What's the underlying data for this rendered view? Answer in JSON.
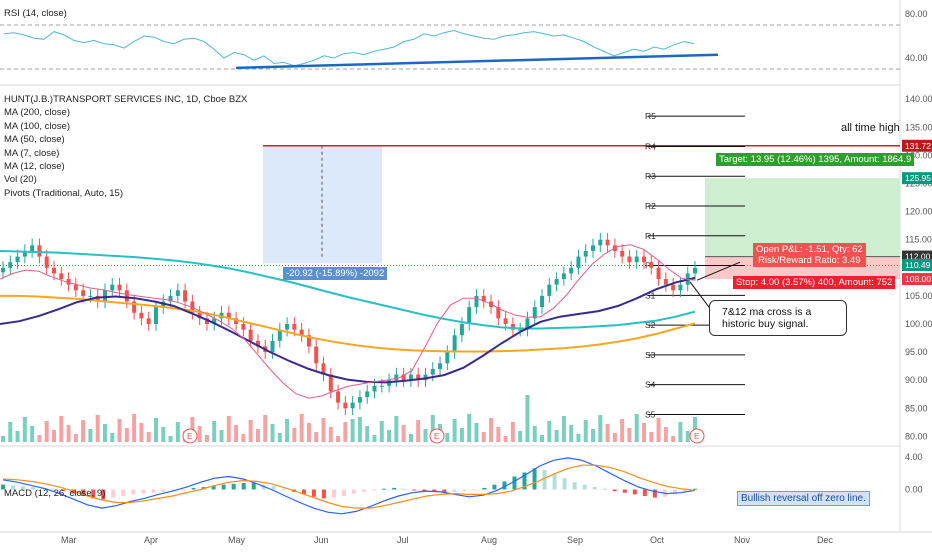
{
  "chart_data": [
    {
      "type": "line",
      "panel": "rsi",
      "title": "RSI (14, close)",
      "ylim": [
        20,
        90
      ],
      "levels": [
        70,
        30
      ],
      "axis_ticks": [
        "80.00",
        "40.00"
      ],
      "values": [
        62,
        63,
        61,
        58,
        57,
        64,
        61,
        56,
        54,
        56,
        53,
        52,
        49,
        55,
        60,
        59,
        55,
        53,
        57,
        58,
        55,
        48,
        40,
        45,
        43,
        38,
        42,
        35,
        36,
        33,
        35,
        38,
        42,
        40,
        44,
        45,
        43,
        46,
        48,
        50,
        55,
        57,
        62,
        60,
        63,
        65,
        62,
        60,
        58,
        57,
        60,
        61,
        63,
        64,
        62,
        60,
        61,
        58,
        55,
        50,
        46,
        42,
        45,
        48,
        46,
        50,
        48,
        52,
        55,
        53
      ],
      "trendline": {
        "from_index": 24,
        "to_index": 69,
        "from_value": 31,
        "to_value": 43
      }
    },
    {
      "type": "candlestick",
      "panel": "price",
      "title": "HUNT(J.B.)TRANSPORT SERVICES INC, 1D, Cboe BZX",
      "legend": [
        "MA (200, close)",
        "MA (100, close)",
        "MA (50, close)",
        "MA (7, close)",
        "MA (12, close)",
        "Vol (20)",
        "Pivots (Traditional, Auto, 15)"
      ],
      "axis_ticks": [
        "140.00",
        "135.00",
        "130.00",
        "125.00",
        "120.00",
        "115.00",
        "110.00",
        "105.00",
        "100.00",
        "95.00",
        "90.00",
        "85.00",
        "80.00"
      ],
      "ylim": [
        79,
        142
      ],
      "x_labels": [
        "Mar",
        "Apr",
        "May",
        "Jun",
        "Jul",
        "Aug",
        "Sep",
        "Oct",
        "Nov",
        "Dec"
      ],
      "closes": [
        110,
        111,
        112,
        113,
        114,
        112,
        110,
        109,
        108,
        107,
        106,
        105,
        105,
        104,
        106,
        107,
        106,
        104,
        102,
        101,
        100,
        103,
        104,
        105,
        106,
        104,
        102,
        101,
        100,
        101,
        102,
        101,
        100,
        99,
        97,
        96,
        95,
        97,
        99,
        100,
        99,
        98,
        96,
        93,
        91,
        88,
        86,
        85,
        86,
        87,
        88,
        89,
        89,
        90,
        91,
        90,
        91,
        90,
        91,
        92,
        93,
        95,
        98,
        100,
        103,
        105,
        104,
        103,
        101,
        100,
        99,
        99,
        101,
        103,
        105,
        107,
        108,
        109,
        110,
        112,
        113,
        114,
        115,
        114,
        113,
        112,
        111,
        112,
        111,
        110,
        108,
        107,
        106,
        107,
        109,
        110
      ],
      "ma_200": [
        113,
        112.9,
        112.8,
        112.7,
        112.5,
        112.3,
        112.1,
        111.9,
        111.6,
        111.3,
        110.9,
        110.4,
        109.8,
        109.1,
        108.3,
        107.5,
        106.6,
        105.7,
        104.8,
        104,
        103.2,
        102.4,
        101.6,
        100.9,
        100.3,
        99.8,
        99.4,
        99.2,
        99.2,
        99.3,
        99.4,
        99.6,
        99.8,
        100.2,
        100.6,
        101.3,
        102.2
      ],
      "ma_100": [
        105,
        105,
        104.9,
        104.7,
        104.5,
        104.2,
        103.9,
        103.6,
        103.3,
        102.9,
        102.5,
        101.9,
        101.2,
        100.4,
        99.6,
        98.8,
        98,
        97.3,
        96.7,
        96.2,
        95.8,
        95.5,
        95.3,
        95.2,
        95.1,
        95.1,
        95.1,
        95.2,
        95.3,
        95.5,
        95.7,
        96,
        96.4,
        96.9,
        97.5,
        98.3,
        99.2,
        100.1
      ],
      "ma_50": [
        100,
        100.5,
        101.4,
        102.6,
        103.9,
        104.7,
        104.9,
        104.6,
        104,
        103.2,
        101.8,
        100.3,
        98.6,
        96.8,
        95,
        93.4,
        92,
        90.9,
        90.1,
        89.7,
        89.6,
        89.9,
        90.3,
        90.9,
        92.2,
        94.3,
        96.6,
        98.7,
        100.4,
        101.3,
        101.8,
        102.3,
        103.2,
        104.6,
        106.2,
        107.4,
        108.2
      ],
      "ma_12": [
        108,
        109,
        109.6,
        109.4,
        108.4,
        107.6,
        107,
        106.4,
        106.1,
        105.6,
        105.2,
        104.9,
        104.6,
        104.3,
        103.7,
        102.9,
        101.8,
        100.6,
        99.2,
        97.3,
        94.6,
        91.9,
        89.5,
        87.6,
        86.8,
        87.2,
        88.1,
        88.9,
        89.3,
        89.7,
        90,
        90.4,
        91.7,
        95.8,
        100.2,
        103.4,
        104.6,
        104.6,
        103.7,
        102.5,
        101.6,
        101.2,
        101.3,
        102.8,
        105.1,
        108,
        110.6,
        112.5,
        113.8,
        114.1,
        113.3,
        111.6,
        109.7,
        108.1,
        107.8
      ],
      "pivots": [
        {
          "name": "R5",
          "value": 137
        },
        {
          "name": "R4",
          "value": 131.6
        },
        {
          "name": "R3",
          "value": 126.3
        },
        {
          "name": "R2",
          "value": 121
        },
        {
          "name": "R1",
          "value": 115.7
        },
        {
          "name": "P",
          "value": 110.4
        },
        {
          "name": "S1",
          "value": 105.1
        },
        {
          "name": "S2",
          "value": 99.8
        },
        {
          "name": "S3",
          "value": 94.5
        },
        {
          "name": "S4",
          "value": 89.2
        },
        {
          "name": "S5",
          "value": 83.9
        }
      ],
      "price_badges": [
        {
          "label": "131.72",
          "value": 131.72,
          "color": "#b71c1c"
        },
        {
          "label": "125.95",
          "value": 125.95,
          "color": "#089981"
        },
        {
          "label": "112.00",
          "value": 112,
          "color": "#333333"
        },
        {
          "label": "110.49",
          "value": 110.49,
          "color": "#089981"
        },
        {
          "label": "108.00",
          "value": 108,
          "color": "#f23645"
        }
      ],
      "annotations": {
        "all_time_high_label": "all time high",
        "all_time_high_value": 131.72,
        "measure_label": "-20.92 (-15.89%) -2092",
        "target_label": "Target: 13.95 (12.46%) 1395, Amount: 1864.9",
        "open_pnl_label": "Open P&L: -1.51, Qty: 62",
        "rr_label": "Risk/Reward Ratio: 3.49",
        "stop_label": "Stop: 4.00 (3.57%) 400, Amount: 752",
        "callout": "7&12 ma cross is a historic buy signal.",
        "earnings_marker": "E"
      }
    },
    {
      "type": "bar",
      "panel": "macd",
      "title": "MACD (12, 26, close, 9)",
      "axis_ticks": [
        "4.00",
        "0.00"
      ],
      "ylim": [
        -5,
        5
      ],
      "histogram": [
        0.6,
        0.5,
        0.4,
        0.3,
        0.2,
        0.1,
        -0.2,
        -0.5,
        -0.8,
        -1.1,
        -1.2,
        -1.0,
        -0.8,
        -0.6,
        -0.5,
        -0.4,
        -0.3,
        -0.2,
        -0.1,
        0.2,
        0.3,
        0.5,
        0.6,
        0.7,
        0.8,
        0.8,
        0.6,
        0.4,
        0.1,
        -0.3,
        -0.6,
        -0.9,
        -1.1,
        -1.0,
        -0.8,
        -0.5,
        -0.3,
        -0.1,
        0.1,
        0.2,
        0.1,
        -0.1,
        -0.2,
        -0.3,
        -0.4,
        -0.3,
        -0.2,
        -0.1,
        0.2,
        0.6,
        1.0,
        1.6,
        2.1,
        2.6,
        2.4,
        1.9,
        1.4,
        0.9,
        0.6,
        0.3,
        0.1,
        -0.2,
        -0.4,
        -0.6,
        -0.8,
        -1.0,
        -0.9,
        -0.6,
        -0.3,
        0.1
      ],
      "macd_line": [
        1.2,
        0.9,
        0.5,
        0.1,
        -0.5,
        -1.2,
        -1.9,
        -2.3,
        -2.0,
        -1.5,
        -1.1,
        -0.6,
        -0.2,
        0.3,
        0.9,
        1.4,
        1.6,
        1.3,
        0.7,
        0.0,
        -0.8,
        -1.6,
        -2.3,
        -2.8,
        -3.0,
        -2.7,
        -2.1,
        -1.4,
        -0.8,
        -0.4,
        -0.2,
        -0.3,
        -0.6,
        -0.9,
        -0.7,
        -0.1,
        0.8,
        1.8,
        2.9,
        3.6,
        3.9,
        3.6,
        2.9,
        2.0,
        1.1,
        0.3,
        -0.2,
        -0.5,
        -0.4,
        -0.1
      ],
      "signal_line": [
        1.3,
        1.2,
        1.0,
        0.7,
        0.3,
        -0.2,
        -0.8,
        -1.3,
        -1.6,
        -1.6,
        -1.4,
        -1.1,
        -0.8,
        -0.4,
        0.0,
        0.5,
        0.9,
        1.1,
        1.0,
        0.7,
        0.2,
        -0.4,
        -1.0,
        -1.6,
        -2.1,
        -2.3,
        -2.3,
        -2.0,
        -1.6,
        -1.2,
        -0.8,
        -0.6,
        -0.5,
        -0.6,
        -0.6,
        -0.5,
        -0.2,
        0.4,
        1.1,
        1.9,
        2.6,
        3.0,
        3.0,
        2.7,
        2.2,
        1.5,
        0.9,
        0.4,
        0.1,
        -0.1
      ],
      "note": "Bullish reversal off zero line."
    }
  ]
}
